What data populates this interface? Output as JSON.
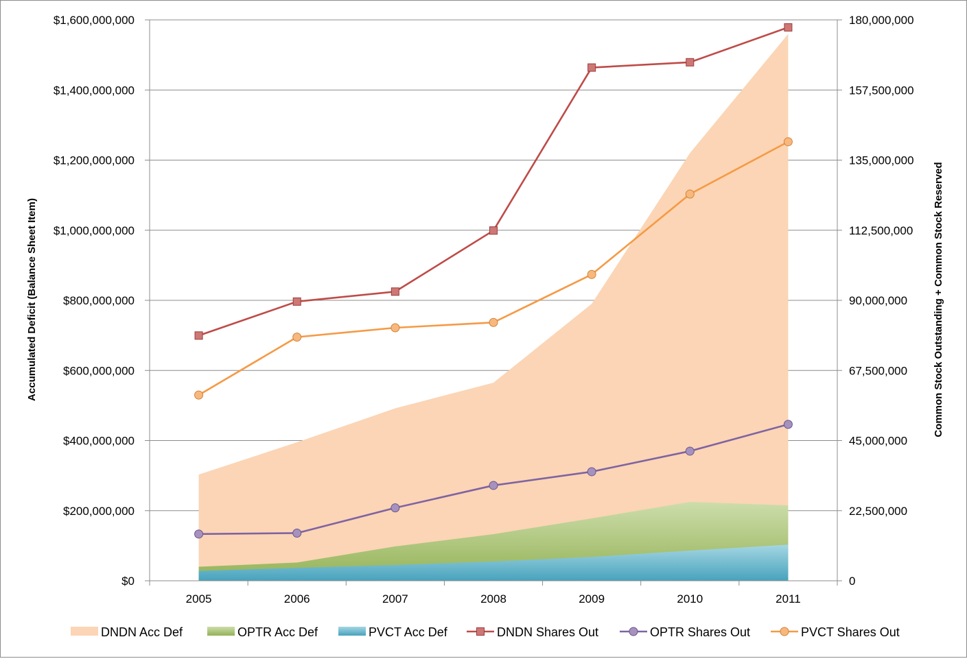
{
  "chart_data": {
    "type": "area+line",
    "categories": [
      "2005",
      "2006",
      "2007",
      "2008",
      "2009",
      "2010",
      "2011"
    ],
    "y_left": {
      "label": "Accumulated Deficit (Balance Sheet Item)",
      "min": 0,
      "max": 1600000000,
      "step": 200000000,
      "ticks": [
        "$0",
        "$200,000,000",
        "$400,000,000",
        "$600,000,000",
        "$800,000,000",
        "$1,000,000,000",
        "$1,200,000,000",
        "$1,400,000,000",
        "$1,600,000,000"
      ]
    },
    "y_right": {
      "label": "Common Stock Outstanding + Common Stock Reserved",
      "min": 0,
      "max": 180000000,
      "step": 22500000,
      "ticks": [
        "0",
        "22,500,000",
        "45,000,000",
        "67,500,000",
        "90,000,000",
        "112,500,000",
        "135,000,000",
        "157,500,000",
        "180,000,000"
      ]
    },
    "grid": true,
    "legend_position": "bottom",
    "area_series": [
      {
        "name": "DNDN Acc Def",
        "axis": "left",
        "color": "#fbd5b5",
        "values": [
          303000000,
          395000000,
          492000000,
          565000000,
          790000000,
          1220000000,
          1560000000
        ]
      },
      {
        "name": "OPTR Acc Def",
        "axis": "left",
        "color": "#9bbb59",
        "values": [
          40000000,
          52000000,
          98000000,
          133000000,
          178000000,
          225000000,
          215000000
        ]
      },
      {
        "name": "PVCT Acc Def",
        "axis": "left",
        "color": "#4bacc6",
        "values": [
          28000000,
          37000000,
          45000000,
          55000000,
          68000000,
          86000000,
          103000000
        ]
      }
    ],
    "line_series": [
      {
        "name": "DNDN Shares Out",
        "axis": "right",
        "color": "#be4b48",
        "marker": "square",
        "values": [
          78700000,
          89600000,
          92800000,
          112400000,
          164700000,
          166400000,
          177600000
        ]
      },
      {
        "name": "OPTR Shares Out",
        "axis": "right",
        "color": "#7f63a2",
        "marker": "circle",
        "values": [
          15000000,
          15300000,
          23400000,
          30600000,
          35000000,
          41600000,
          50200000
        ]
      },
      {
        "name": "PVCT Shares Out",
        "axis": "right",
        "color": "#f59a45",
        "marker": "circle",
        "values": [
          59600000,
          78200000,
          81200000,
          82900000,
          98300000,
          124100000,
          140900000
        ]
      }
    ]
  }
}
